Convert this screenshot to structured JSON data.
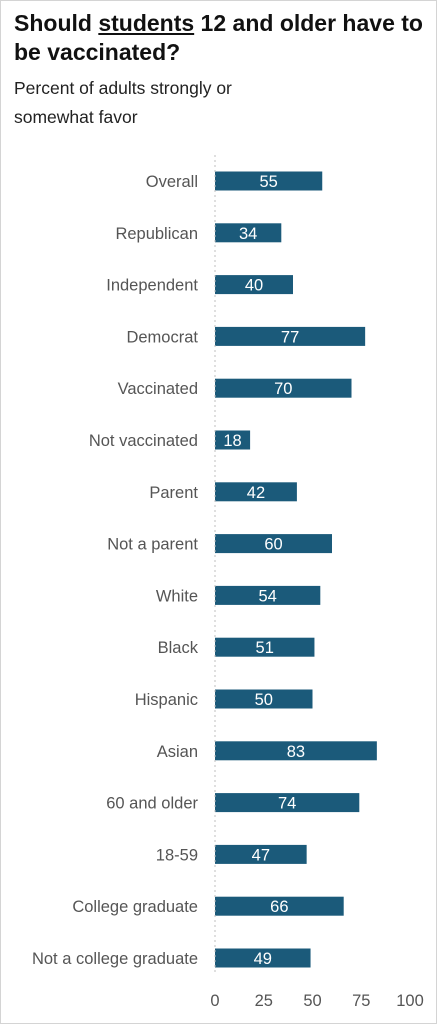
{
  "header": {
    "title_prefix": "Should ",
    "title_emphasis": "students",
    "title_suffix": " 12 and older have to be vaccinated?",
    "subtitle": "Percent of adults strongly or somewhat favor"
  },
  "colors": {
    "bar": "#1b5a7a",
    "axis": "#bfbfbf",
    "label": "#555555",
    "value_text": "#ffffff"
  },
  "chart_data": {
    "type": "bar",
    "orientation": "horizontal",
    "title": "Should students 12 and older have to be vaccinated?",
    "subtitle": "Percent of adults strongly or somewhat favor",
    "categories": [
      "Overall",
      "Republican",
      "Independent",
      "Democrat",
      "Vaccinated",
      "Not vaccinated",
      "Parent",
      "Not a parent",
      "White",
      "Black",
      "Hispanic",
      "Asian",
      "60 and older",
      "18-59",
      "College graduate",
      "Not a college graduate"
    ],
    "values": [
      55,
      34,
      40,
      77,
      70,
      18,
      42,
      60,
      54,
      51,
      50,
      83,
      74,
      47,
      66,
      49
    ],
    "xlim": [
      0,
      100
    ],
    "xticks": [
      0,
      25,
      50,
      75,
      100
    ],
    "xlabel": "",
    "ylabel": "",
    "grid": false,
    "data_labels": true
  }
}
